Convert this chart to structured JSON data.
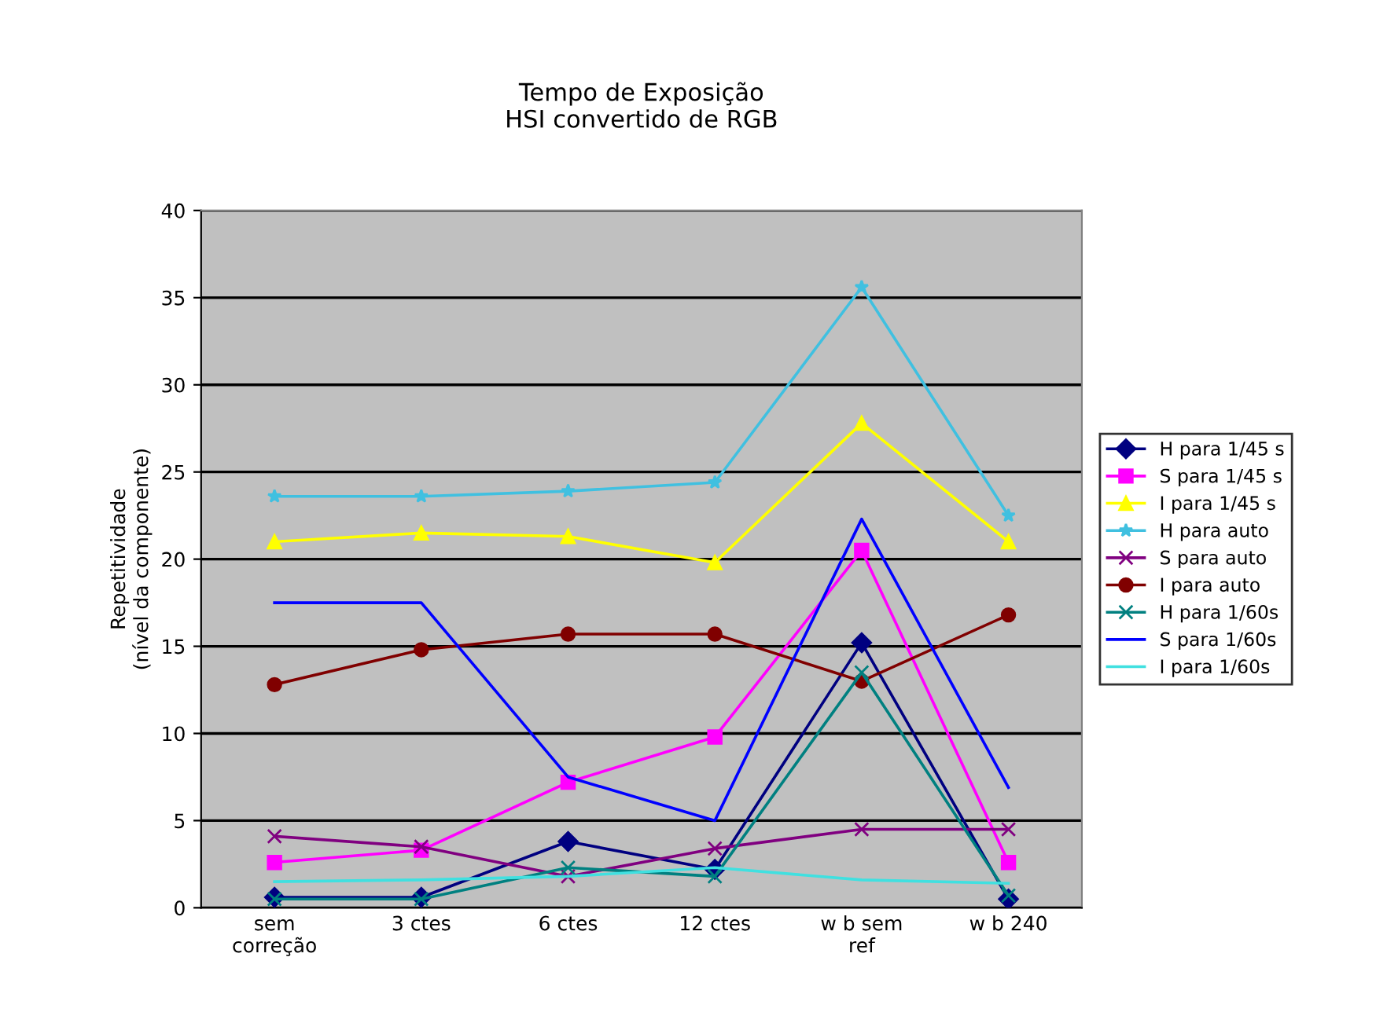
{
  "chart_data": {
    "type": "line",
    "title": "Tempo de Exposição\nHSI convertido de RGB",
    "ylabel": "Repetitividade\n(nível da componente)",
    "categories": [
      "sem\ncorreção",
      "3 ctes",
      "6 ctes",
      "12 ctes",
      "w b sem\nref",
      "w b 240"
    ],
    "ylim": [
      0,
      40
    ],
    "yticks": [
      0,
      5,
      10,
      15,
      20,
      25,
      30,
      35,
      40
    ],
    "grid": "y",
    "legend": "right",
    "series": [
      {
        "name": "H para 1/45 s",
        "color": "#000080",
        "marker": "diamond",
        "values": [
          0.6,
          0.6,
          3.8,
          2.2,
          15.2,
          0.5
        ]
      },
      {
        "name": "S para 1/45 s",
        "color": "#ff00ff",
        "marker": "square",
        "values": [
          2.6,
          3.3,
          7.2,
          9.8,
          20.5,
          2.6
        ]
      },
      {
        "name": "I para 1/45 s",
        "color": "#ffff00",
        "marker": "triangle",
        "values": [
          21.0,
          21.5,
          21.3,
          19.8,
          27.8,
          21.0
        ]
      },
      {
        "name": "H para auto",
        "color": "#40c0e0",
        "marker": "star",
        "values": [
          23.6,
          23.6,
          23.9,
          24.4,
          35.6,
          22.5
        ]
      },
      {
        "name": "S para auto",
        "color": "#800080",
        "marker": "cross",
        "values": [
          4.1,
          3.5,
          1.8,
          3.4,
          4.5,
          4.5
        ]
      },
      {
        "name": "I para auto",
        "color": "#800000",
        "marker": "circle",
        "values": [
          12.8,
          14.8,
          15.7,
          15.7,
          13.0,
          16.8
        ]
      },
      {
        "name": "H para 1/60s",
        "color": "#008080",
        "marker": "cross",
        "values": [
          0.5,
          0.5,
          2.3,
          1.8,
          13.5,
          0.7
        ]
      },
      {
        "name": "S para 1/60s",
        "color": "#0000ff",
        "marker": "none",
        "values": [
          17.5,
          17.5,
          7.5,
          5.0,
          22.3,
          6.9
        ]
      },
      {
        "name": "I para 1/60s",
        "color": "#40e0e0",
        "marker": "none",
        "values": [
          1.5,
          1.6,
          1.8,
          2.3,
          1.6,
          1.4
        ]
      }
    ]
  }
}
